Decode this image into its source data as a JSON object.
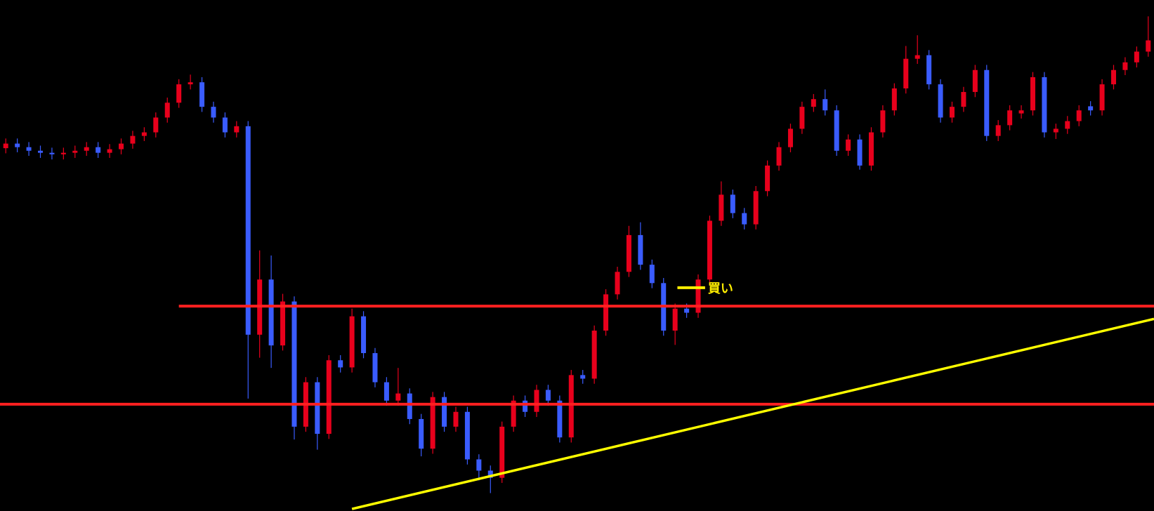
{
  "chart_data": {
    "type": "candlestick",
    "ylim": [
      0,
      100
    ],
    "up_color": "#e8001c",
    "down_color": "#3a5cff",
    "open": [
      71.0,
      71.9,
      71.2,
      70.5,
      70.1,
      69.8,
      70.1,
      70.5,
      71.2,
      70.1,
      70.8,
      71.9,
      73.4,
      74.1,
      77.0,
      79.9,
      83.5,
      83.9,
      79.1,
      77.0,
      74.1,
      75.3,
      34.5,
      45.3,
      32.4,
      41.0,
      16.5,
      25.2,
      15.1,
      29.5,
      28.1,
      38.1,
      30.9,
      25.2,
      21.6,
      23.0,
      18.0,
      12.2,
      22.3,
      16.5,
      19.4,
      10.1,
      7.9,
      6.5,
      16.5,
      21.6,
      19.4,
      23.7,
      21.6,
      14.4,
      26.6,
      25.9,
      35.3,
      42.4,
      46.8,
      54.0,
      48.2,
      44.6,
      35.3,
      39.6,
      38.8,
      45.3,
      56.8,
      61.9,
      58.3,
      56.1,
      62.6,
      67.6,
      71.2,
      74.8,
      79.1,
      80.6,
      78.4,
      70.5,
      72.7,
      67.6,
      74.1,
      78.4,
      82.7,
      88.5,
      89.2,
      83.5,
      77.0,
      79.1,
      82.0,
      86.3,
      73.4,
      75.5,
      77.8,
      78.4,
      84.9,
      74.1,
      74.8,
      76.3,
      79.2,
      78.4,
      83.5,
      86.3,
      87.8,
      89.9
    ],
    "high": [
      72.9,
      72.9,
      72.2,
      71.5,
      71.1,
      71.1,
      71.5,
      72.2,
      72.2,
      71.8,
      72.9,
      74.4,
      75.1,
      78.0,
      80.9,
      84.5,
      85.4,
      84.9,
      80.1,
      78.0,
      76.3,
      76.3,
      51.0,
      50.0,
      42.5,
      42.0,
      26.2,
      26.2,
      30.5,
      30.5,
      39.6,
      39.1,
      31.9,
      26.2,
      28.0,
      24.0,
      19.0,
      23.3,
      23.3,
      20.4,
      20.4,
      11.1,
      8.9,
      17.5,
      22.6,
      22.6,
      24.7,
      24.7,
      22.6,
      27.6,
      27.6,
      36.3,
      43.4,
      47.8,
      55.8,
      56.5,
      49.2,
      45.6,
      40.6,
      40.6,
      46.3,
      57.8,
      64.5,
      62.9,
      59.3,
      63.6,
      68.6,
      72.2,
      75.8,
      80.1,
      81.6,
      82.5,
      79.4,
      73.7,
      73.7,
      75.1,
      79.4,
      83.7,
      91.0,
      93.1,
      90.2,
      84.5,
      80.1,
      83.0,
      87.3,
      87.3,
      76.5,
      79.4,
      79.4,
      85.9,
      85.9,
      75.8,
      77.3,
      79.4,
      80.2,
      84.5,
      87.3,
      88.8,
      90.9,
      96.8
    ],
    "low": [
      70.0,
      70.2,
      69.5,
      69.1,
      68.8,
      68.8,
      69.1,
      69.5,
      69.1,
      69.1,
      69.8,
      70.9,
      72.4,
      73.1,
      76.0,
      78.9,
      82.5,
      78.1,
      76.0,
      73.1,
      73.1,
      22.0,
      30.0,
      28.0,
      31.4,
      14.0,
      15.5,
      12.0,
      14.1,
      27.1,
      27.1,
      29.9,
      24.2,
      20.6,
      20.6,
      17.0,
      10.7,
      11.2,
      15.5,
      15.5,
      9.1,
      6.0,
      3.5,
      5.5,
      15.5,
      18.4,
      18.4,
      20.6,
      13.4,
      13.4,
      24.9,
      24.9,
      34.3,
      41.4,
      45.8,
      47.2,
      43.6,
      34.3,
      32.5,
      37.8,
      37.8,
      44.3,
      55.8,
      57.3,
      55.1,
      55.1,
      61.6,
      66.6,
      70.2,
      73.8,
      78.1,
      77.4,
      69.5,
      69.5,
      66.8,
      66.6,
      73.1,
      77.4,
      81.7,
      87.5,
      82.5,
      76.0,
      76.0,
      78.1,
      81.0,
      72.4,
      72.4,
      74.5,
      76.8,
      77.4,
      73.1,
      72.8,
      73.8,
      75.3,
      77.4,
      77.4,
      82.5,
      85.3,
      86.8,
      88.9
    ],
    "close": [
      71.9,
      71.2,
      70.5,
      70.1,
      69.8,
      70.1,
      70.5,
      71.2,
      70.1,
      70.8,
      71.9,
      73.4,
      74.1,
      77.0,
      79.9,
      83.5,
      83.9,
      79.1,
      77.0,
      74.1,
      75.3,
      34.5,
      45.3,
      32.4,
      41.0,
      16.5,
      25.2,
      15.1,
      29.5,
      28.1,
      38.1,
      30.9,
      25.2,
      21.6,
      23.0,
      18.0,
      12.2,
      22.3,
      16.5,
      19.4,
      10.1,
      7.9,
      6.5,
      16.5,
      21.6,
      19.4,
      23.7,
      21.6,
      14.4,
      26.6,
      25.9,
      35.3,
      42.4,
      46.8,
      54.0,
      48.2,
      44.6,
      35.3,
      39.6,
      38.8,
      45.3,
      56.8,
      61.9,
      58.3,
      56.1,
      62.6,
      67.6,
      71.2,
      74.8,
      79.1,
      80.6,
      78.4,
      70.5,
      72.7,
      67.6,
      74.1,
      78.4,
      82.7,
      88.5,
      89.2,
      83.5,
      77.0,
      79.1,
      82.0,
      86.3,
      73.4,
      75.5,
      78.4,
      78.4,
      84.9,
      74.1,
      74.8,
      76.3,
      78.4,
      78.4,
      83.5,
      86.3,
      87.8,
      89.9,
      92.1
    ],
    "hlines": [
      {
        "value": 40.1,
        "from": 15,
        "color": "#ff2020"
      },
      {
        "value": 20.9,
        "color": "#ff2020"
      }
    ],
    "trendline": {
      "x": [
        30,
        99.5
      ],
      "values": [
        0.4,
        37.6
      ],
      "color": "#ffff00"
    },
    "annotations": [
      {
        "text": "買い",
        "value": 43.7,
        "x": [
          58.2,
          60.6
        ],
        "color": "#ffee00"
      }
    ]
  }
}
